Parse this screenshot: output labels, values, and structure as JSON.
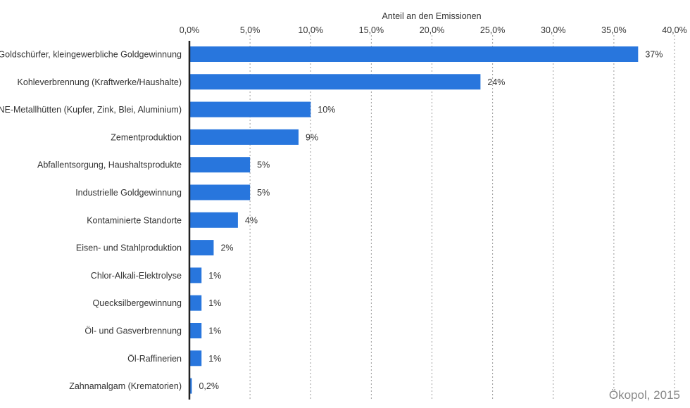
{
  "chart_data": {
    "type": "bar",
    "orientation": "horizontal",
    "xlabel": "Anteil an den Emissionen",
    "xlim": [
      0,
      40
    ],
    "ticks": [
      0,
      5,
      10,
      15,
      20,
      25,
      30,
      35,
      40
    ],
    "tick_labels": [
      "0,0%",
      "5,0%",
      "10,0%",
      "15,0%",
      "20,0%",
      "25,0%",
      "30,0%",
      "35,0%",
      "40,0%"
    ],
    "categories": [
      "Goldschürfer, kleingewerbliche Goldgewinnung",
      "Kohleverbrennung (Kraftwerke/Haushalte)",
      "NE-Metallhütten (Kupfer, Zink, Blei, Aluminium)",
      "Zementproduktion",
      "Abfallentsorgung, Haushaltsprodukte",
      "Industrielle Goldgewinnung",
      "Kontaminierte Standorte",
      "Eisen- und Stahlproduktion",
      "Chlor-Alkali-Elektrolyse",
      "Quecksilbergewinnung",
      "Öl- und Gasverbrennung",
      "Öl-Raffinerien",
      "Zahnamalgam (Krematorien)"
    ],
    "values": [
      37,
      24,
      10,
      9,
      5,
      5,
      4,
      2,
      1,
      1,
      1,
      1,
      0.2
    ],
    "value_labels": [
      "37%",
      "24%",
      "10%",
      "9%",
      "5%",
      "5%",
      "4%",
      "2%",
      "1%",
      "1%",
      "1%",
      "1%",
      "0,2%"
    ],
    "bar_color": "#2876dd",
    "grid": "vertical dotted",
    "axis_position": "top"
  },
  "source": "Ökopol, 2015"
}
